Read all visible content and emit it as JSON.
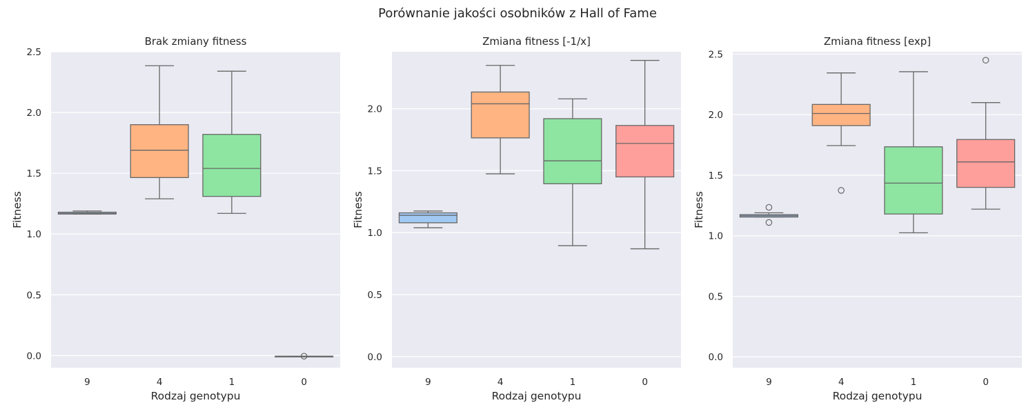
{
  "figure": {
    "title": "Porównanie jakości osobników z Hall of Fame"
  },
  "palette": {
    "axes_background": "#eaeaf2",
    "grid": "#ffffff",
    "box_edge": "#666666",
    "series_colors": {
      "9": "#a1c9f4",
      "4": "#ffb482",
      "1": "#8de5a1",
      "0": "#ff9f9b"
    }
  },
  "chart_data": [
    {
      "type": "box",
      "title": "Brak zmiany fitness",
      "xlabel": "Rodzaj genotypu",
      "ylabel": "Fitness",
      "categories": [
        "9",
        "4",
        "1",
        "0"
      ],
      "ylim": [
        -0.1,
        2.5
      ],
      "yticks": [
        0.0,
        0.5,
        1.0,
        1.5,
        2.0,
        2.5
      ],
      "ytick_labels": [
        "0.0",
        "0.5",
        "1.0",
        "1.5",
        "2.0",
        "2.5"
      ],
      "grid": true,
      "boxes": [
        {
          "category": "9",
          "whisker_low": 1.165,
          "q1": 1.165,
          "median": 1.17,
          "q3": 1.18,
          "whisker_high": 1.19,
          "outliers": []
        },
        {
          "category": "4",
          "whisker_low": 1.29,
          "q1": 1.465,
          "median": 1.69,
          "q3": 1.9,
          "whisker_high": 2.385,
          "outliers": []
        },
        {
          "category": "1",
          "whisker_low": 1.17,
          "q1": 1.31,
          "median": 1.54,
          "q3": 1.82,
          "whisker_high": 2.34,
          "outliers": []
        },
        {
          "category": "0",
          "whisker_low": -0.005,
          "q1": -0.005,
          "median": -0.005,
          "q3": -0.005,
          "whisker_high": -0.005,
          "outliers": [
            -0.005
          ]
        }
      ]
    },
    {
      "type": "box",
      "title": "Zmiana fitness [-1/x]",
      "xlabel": "Rodzaj genotypu",
      "ylabel": "Fitness",
      "categories": [
        "9",
        "4",
        "1",
        "0"
      ],
      "ylim": [
        -0.09,
        2.46
      ],
      "yticks": [
        0.0,
        0.5,
        1.0,
        1.5,
        2.0
      ],
      "ytick_labels": [
        "0.0",
        "0.5",
        "1.0",
        "1.5",
        "2.0"
      ],
      "grid": true,
      "boxes": [
        {
          "category": "9",
          "whisker_low": 1.04,
          "q1": 1.08,
          "median": 1.14,
          "q3": 1.16,
          "whisker_high": 1.175,
          "outliers": []
        },
        {
          "category": "4",
          "whisker_low": 1.475,
          "q1": 1.765,
          "median": 2.04,
          "q3": 2.135,
          "whisker_high": 2.35,
          "outliers": []
        },
        {
          "category": "1",
          "whisker_low": 0.895,
          "q1": 1.395,
          "median": 1.58,
          "q3": 1.92,
          "whisker_high": 2.08,
          "outliers": []
        },
        {
          "category": "0",
          "whisker_low": 0.87,
          "q1": 1.45,
          "median": 1.72,
          "q3": 1.865,
          "whisker_high": 2.39,
          "outliers": []
        }
      ]
    },
    {
      "type": "box",
      "title": "Zmiana fitness [exp]",
      "xlabel": "Rodzaj genotypu",
      "ylabel": "Fitness",
      "categories": [
        "9",
        "4",
        "1",
        "0"
      ],
      "ylim": [
        -0.09,
        2.52
      ],
      "yticks": [
        0.0,
        0.5,
        1.0,
        1.5,
        2.0,
        2.5
      ],
      "ytick_labels": [
        "0.0",
        "0.5",
        "1.0",
        "1.5",
        "2.0",
        "2.5"
      ],
      "grid": true,
      "boxes": [
        {
          "category": "9",
          "whisker_low": 1.155,
          "q1": 1.155,
          "median": 1.165,
          "q3": 1.175,
          "whisker_high": 1.19,
          "outliers": [
            1.11,
            1.235
          ]
        },
        {
          "category": "4",
          "whisker_low": 1.745,
          "q1": 1.91,
          "median": 2.01,
          "q3": 2.085,
          "whisker_high": 2.345,
          "outliers": [
            1.375
          ]
        },
        {
          "category": "1",
          "whisker_low": 1.025,
          "q1": 1.18,
          "median": 1.435,
          "q3": 1.735,
          "whisker_high": 2.355,
          "outliers": []
        },
        {
          "category": "0",
          "whisker_low": 1.22,
          "q1": 1.4,
          "median": 1.61,
          "q3": 1.795,
          "whisker_high": 2.1,
          "outliers": [
            2.45
          ]
        }
      ]
    }
  ]
}
